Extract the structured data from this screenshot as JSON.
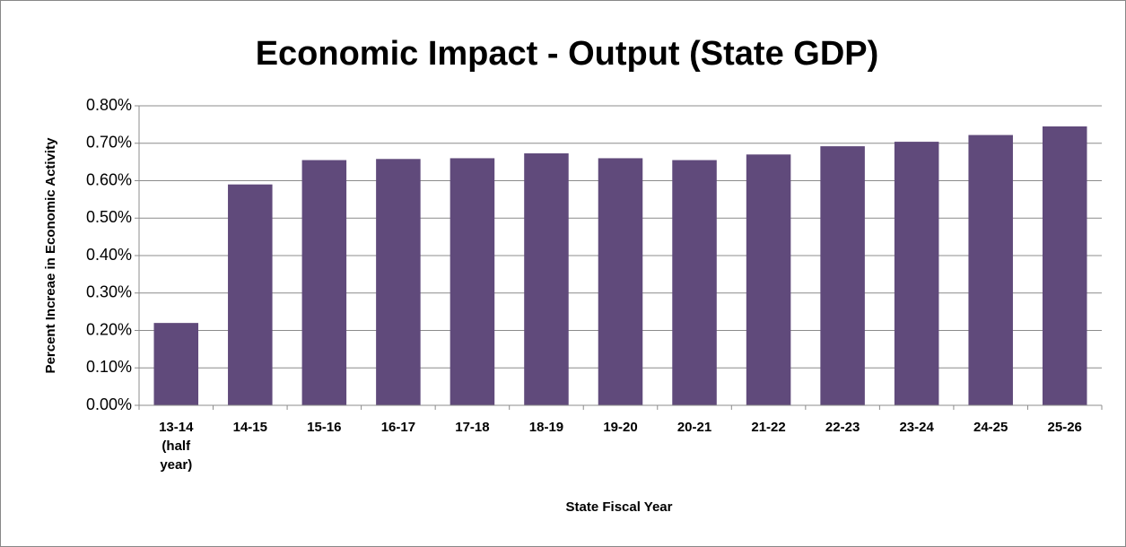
{
  "chart_data": {
    "type": "bar",
    "title": "Economic Impact - Output (State GDP)",
    "x_label": "State Fiscal Year",
    "y_label": "Percent Increae in Economic Activity",
    "categories": [
      "13-14 (half year)",
      "14-15",
      "15-16",
      "16-17",
      "17-18",
      "18-19",
      "19-20",
      "20-21",
      "21-22",
      "22-23",
      "23-24",
      "24-25",
      "25-26"
    ],
    "values": [
      0.22,
      0.59,
      0.655,
      0.658,
      0.66,
      0.673,
      0.66,
      0.655,
      0.67,
      0.692,
      0.704,
      0.722,
      0.745
    ],
    "color": "#604a7b",
    "ylim": [
      0,
      0.8
    ],
    "yticks": [
      {
        "value": 0,
        "label": "0.00%"
      },
      {
        "value": 0.1,
        "label": "0.10%"
      },
      {
        "value": 0.2,
        "label": "0.20%"
      },
      {
        "value": 0.3,
        "label": "0.30%"
      },
      {
        "value": 0.4,
        "label": "0.40%"
      },
      {
        "value": 0.5,
        "label": "0.50%"
      },
      {
        "value": 0.6,
        "label": "0.60%"
      },
      {
        "value": 0.7,
        "label": "0.70%"
      },
      {
        "value": 0.8,
        "label": "0.80%"
      }
    ],
    "grid": true
  }
}
